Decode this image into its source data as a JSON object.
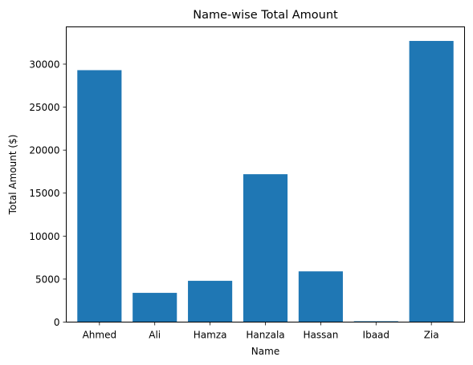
{
  "chart_data": {
    "type": "bar",
    "title": "Name-wise Total Amount",
    "xlabel": "Name",
    "ylabel": "Total Amount ($)",
    "categories": [
      "Ahmed",
      "Ali",
      "Hamza",
      "Hanzala",
      "Hassan",
      "Ibaad",
      "Zia"
    ],
    "values": [
      29300,
      3400,
      4800,
      17200,
      5900,
      100,
      32700
    ],
    "ylim": [
      0,
      34335
    ],
    "yticks": [
      0,
      5000,
      10000,
      15000,
      20000,
      25000,
      30000
    ],
    "ytick_labels": [
      "0",
      "5000",
      "10000",
      "15000",
      "20000",
      "25000",
      "30000"
    ],
    "grid": false,
    "bar_color": "#1f77b4"
  }
}
